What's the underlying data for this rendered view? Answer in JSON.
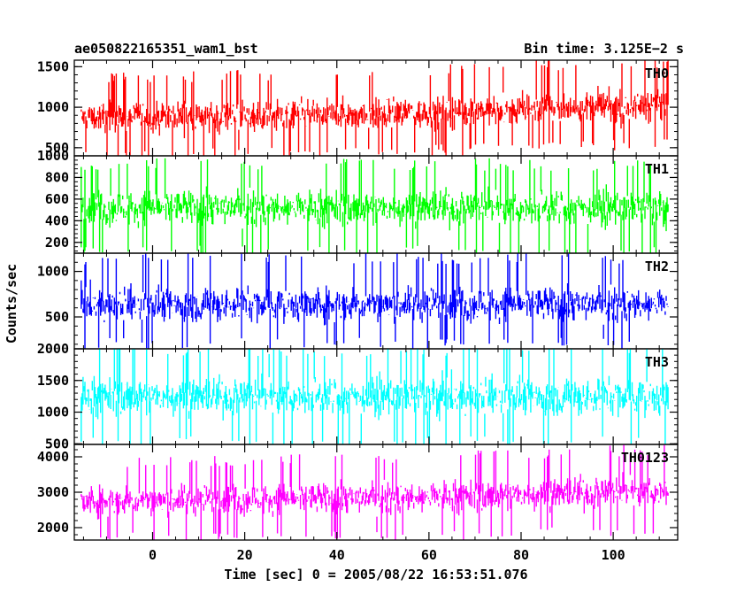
{
  "chart_data": {
    "type": "line",
    "title": "ae050822165351_wam1_bst",
    "subtitle": "Bin time: 3.125E−2 s",
    "xlabel": "Time [sec] 0 = 2005/08/22 16:53:51.076",
    "ylabel": "Counts/sec",
    "xlim": [
      -17,
      114
    ],
    "x_ticks": [
      0,
      20,
      40,
      60,
      80,
      100
    ],
    "x_tick_labels": [
      "0",
      "20",
      "40",
      "60",
      "80",
      "100"
    ],
    "x_data_range": [
      -15.5,
      112
    ],
    "bin_time_s": 0.03125,
    "grid": false,
    "panels": [
      {
        "name": "TH0",
        "color": "#ff0000",
        "ylim": [
          400,
          1580
        ],
        "y_ticks": [
          500,
          1000,
          1500
        ],
        "y_tick_labels": [
          "500",
          "1000",
          "1500"
        ],
        "trend": [
          [
            -15.5,
            480,
            880,
            1280
          ],
          [
            30,
            500,
            900,
            1330
          ],
          [
            55,
            520,
            920,
            1350
          ],
          [
            70,
            560,
            960,
            1420
          ],
          [
            112,
            620,
            1020,
            1480
          ]
        ]
      },
      {
        "name": "TH1",
        "color": "#00ff00",
        "ylim": [
          100,
          1000
        ],
        "y_ticks": [
          200,
          400,
          600,
          800,
          1000
        ],
        "y_tick_labels": [
          "200",
          "400",
          "600",
          "800",
          "1000"
        ],
        "trend": [
          [
            -15.5,
            170,
            520,
            860
          ],
          [
            112,
            170,
            520,
            860
          ]
        ]
      },
      {
        "name": "TH2",
        "color": "#0000ff",
        "ylim": [
          150,
          1200
        ],
        "y_ticks": [
          500,
          1000
        ],
        "y_tick_labels": [
          "500",
          "1000"
        ],
        "trend": [
          [
            -15.5,
            270,
            640,
            1070
          ],
          [
            112,
            270,
            640,
            1070
          ]
        ]
      },
      {
        "name": "TH3",
        "color": "#00ffff",
        "ylim": [
          490,
          2000
        ],
        "y_ticks": [
          500,
          1000,
          1500,
          2000
        ],
        "y_tick_labels": [
          "500",
          "1000",
          "1500",
          "2000"
        ],
        "trend": [
          [
            -15.5,
            620,
            1250,
            1880
          ],
          [
            112,
            620,
            1250,
            1880
          ]
        ]
      },
      {
        "name": "TH0123",
        "color": "#ff00ff",
        "ylim": [
          1650,
          4350
        ],
        "y_ticks": [
          2000,
          3000,
          4000
        ],
        "y_tick_labels": [
          "2000",
          "3000",
          "4000"
        ],
        "trend": [
          [
            -15.5,
            1850,
            2750,
            3650
          ],
          [
            55,
            1900,
            2850,
            3800
          ],
          [
            112,
            2100,
            3050,
            4050
          ]
        ]
      }
    ]
  }
}
